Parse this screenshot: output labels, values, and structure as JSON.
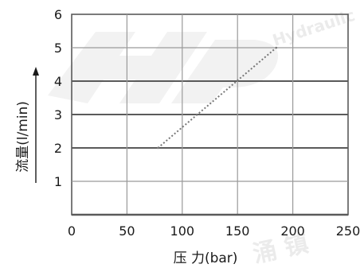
{
  "chart_data": {
    "type": "line",
    "title": "",
    "xlabel": "压 力(bar)",
    "ylabel": "流量(l/min)",
    "xlim": [
      0,
      250
    ],
    "ylim": [
      0,
      6
    ],
    "x_ticks": [
      "0",
      "50",
      "100",
      "150",
      "200",
      "250"
    ],
    "y_ticks": [
      "1",
      "2",
      "3",
      "4",
      "5",
      "6"
    ],
    "grid": true,
    "series": [
      {
        "x": [
          78,
          185
        ],
        "y": [
          2.0,
          5.0
        ]
      }
    ]
  },
  "watermark": {
    "text_top": "Hydraulic",
    "text_bottom": "涌 镇",
    "logo": "HP"
  },
  "colors": {
    "grid_major": "#5a5a5a",
    "grid_minor": "#9a9a9a",
    "line": "#777777",
    "text": "#1a1a1a"
  }
}
